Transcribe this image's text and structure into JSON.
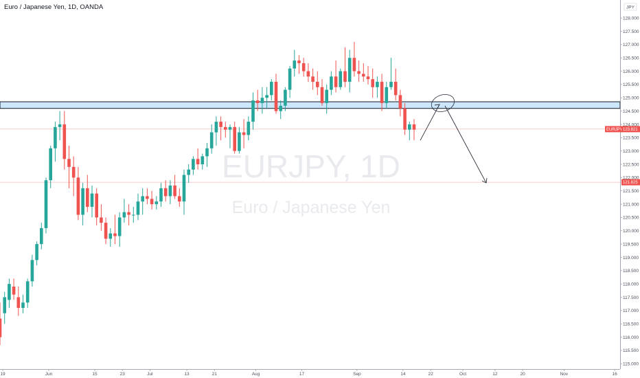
{
  "header": {
    "title": "Euro / Japanese Yen, 1D, OANDA"
  },
  "watermark": {
    "symbol": "EURJPY, 1D",
    "name": "Euro / Japanese Yen"
  },
  "colors": {
    "up": "#26a69a",
    "down": "#ef5350",
    "zone": "#bbdefb",
    "zone_border": "#131722",
    "drawing": "#2a2e39"
  },
  "chart_data": {
    "type": "candlestick",
    "currency": "JPY",
    "ylim": [
      114.8,
      128.6
    ],
    "yticks": [
      "115.000",
      "115.500",
      "116.000",
      "116.500",
      "117.000",
      "117.500",
      "118.000",
      "118.500",
      "119.000",
      "119.500",
      "120.000",
      "120.500",
      "121.000",
      "121.500",
      "122.000",
      "122.500",
      "123.000",
      "123.500",
      "124.000",
      "124.500",
      "125.000",
      "125.500",
      "126.000",
      "126.500",
      "127.000",
      "127.500",
      "128.000"
    ],
    "xtick_labels": [
      {
        "label": "19",
        "candle": 0
      },
      {
        "label": "Jun",
        "candle": 10
      },
      {
        "label": "15",
        "candle": 20
      },
      {
        "label": "23",
        "candle": 26
      },
      {
        "label": "Jul",
        "candle": 32
      },
      {
        "label": "13",
        "candle": 40
      },
      {
        "label": "21",
        "candle": 46
      },
      {
        "label": "Aug",
        "candle": 55
      },
      {
        "label": "17",
        "candle": 65
      },
      {
        "label": "Sep",
        "candle": 77
      },
      {
        "label": "14",
        "candle": 87
      },
      {
        "label": "22",
        "candle": 93
      },
      {
        "label": "Oct",
        "candle": 100
      },
      {
        "label": "12",
        "candle": 107
      },
      {
        "label": "20",
        "candle": 113
      },
      {
        "label": "Nov",
        "candle": 122
      },
      {
        "label": "16",
        "candle": 133
      }
    ],
    "price_tags": [
      {
        "label": "EURJPY",
        "value": 123.821,
        "text": "123.821",
        "color": "#ef5350"
      },
      {
        "value": 121.825,
        "text": "121.825",
        "color": "#ef5350"
      }
    ],
    "zone": {
      "top": 124.85,
      "bottom": 124.6
    },
    "candles": [
      [
        116.7,
        117.3,
        115.7,
        116.0
      ],
      [
        116.9,
        117.7,
        116.5,
        117.5
      ],
      [
        117.4,
        118.2,
        117.1,
        118.0
      ],
      [
        117.9,
        118.2,
        117.4,
        117.6
      ],
      [
        117.5,
        117.9,
        116.8,
        117.1
      ],
      [
        117.1,
        117.6,
        116.9,
        117.3
      ],
      [
        117.3,
        118.2,
        117.1,
        118.1
      ],
      [
        118.1,
        119.1,
        117.9,
        118.9
      ],
      [
        118.9,
        119.6,
        118.7,
        119.5
      ],
      [
        119.5,
        120.3,
        119.3,
        120.1
      ],
      [
        120.1,
        122.0,
        119.9,
        121.9
      ],
      [
        121.9,
        123.2,
        121.6,
        123.1
      ],
      [
        123.1,
        124.1,
        122.6,
        123.9
      ],
      [
        123.9,
        124.5,
        123.4,
        124.0
      ],
      [
        124.0,
        124.5,
        122.3,
        122.7
      ],
      [
        122.7,
        123.2,
        121.6,
        122.4
      ],
      [
        122.4,
        122.8,
        121.3,
        122.0
      ],
      [
        122.0,
        122.4,
        120.4,
        120.6
      ],
      [
        120.6,
        121.8,
        120.2,
        121.6
      ],
      [
        121.6,
        122.1,
        120.7,
        120.9
      ],
      [
        120.9,
        121.7,
        120.5,
        121.4
      ],
      [
        121.4,
        121.6,
        120.2,
        120.5
      ],
      [
        120.5,
        121.0,
        120.0,
        120.3
      ],
      [
        120.3,
        120.5,
        119.5,
        119.7
      ],
      [
        119.7,
        120.1,
        119.4,
        119.9
      ],
      [
        119.9,
        120.6,
        119.5,
        119.8
      ],
      [
        119.8,
        120.7,
        119.4,
        120.5
      ],
      [
        120.5,
        121.2,
        120.3,
        120.7
      ],
      [
        120.7,
        121.0,
        120.2,
        120.6
      ],
      [
        120.6,
        120.9,
        120.3,
        120.6
      ],
      [
        120.6,
        121.4,
        120.4,
        121.1
      ],
      [
        121.1,
        121.6,
        120.6,
        121.3
      ],
      [
        121.3,
        121.6,
        121.0,
        121.2
      ],
      [
        121.2,
        121.5,
        120.8,
        121.0
      ],
      [
        121.0,
        121.3,
        120.8,
        121.1
      ],
      [
        121.1,
        121.8,
        120.9,
        121.6
      ],
      [
        121.6,
        121.9,
        121.1,
        121.3
      ],
      [
        121.3,
        121.9,
        121.0,
        121.7
      ],
      [
        121.7,
        122.1,
        121.2,
        121.3
      ],
      [
        121.3,
        121.6,
        120.9,
        121.1
      ],
      [
        121.1,
        122.3,
        120.6,
        122.1
      ],
      [
        122.1,
        122.5,
        121.8,
        122.3
      ],
      [
        122.3,
        122.8,
        122.1,
        122.7
      ],
      [
        122.7,
        123.1,
        122.3,
        122.5
      ],
      [
        122.5,
        122.9,
        122.3,
        122.8
      ],
      [
        122.8,
        123.3,
        122.4,
        123.1
      ],
      [
        123.1,
        124.0,
        122.9,
        123.7
      ],
      [
        123.7,
        124.3,
        123.2,
        124.1
      ],
      [
        124.1,
        124.3,
        123.4,
        123.9
      ],
      [
        123.9,
        124.1,
        123.5,
        123.8
      ],
      [
        123.8,
        124.0,
        123.1,
        123.9
      ],
      [
        123.9,
        124.1,
        122.9,
        123.0
      ],
      [
        123.0,
        123.9,
        122.9,
        123.7
      ],
      [
        123.7,
        124.2,
        123.1,
        123.6
      ],
      [
        123.6,
        124.3,
        123.4,
        124.1
      ],
      [
        124.1,
        125.2,
        123.8,
        124.9
      ],
      [
        124.9,
        125.3,
        124.5,
        124.8
      ],
      [
        124.8,
        125.4,
        124.4,
        125.0
      ],
      [
        125.0,
        125.4,
        124.6,
        125.1
      ],
      [
        125.1,
        125.7,
        124.9,
        125.6
      ],
      [
        125.6,
        125.9,
        124.4,
        124.5
      ],
      [
        124.5,
        124.9,
        124.2,
        124.7
      ],
      [
        124.7,
        125.4,
        124.5,
        125.3
      ],
      [
        125.3,
        126.2,
        125.0,
        126.1
      ],
      [
        126.1,
        126.8,
        125.8,
        126.4
      ],
      [
        126.4,
        126.6,
        125.9,
        126.3
      ],
      [
        126.3,
        126.5,
        125.8,
        126.0
      ],
      [
        126.0,
        126.3,
        125.6,
        125.8
      ],
      [
        125.8,
        126.1,
        125.3,
        125.6
      ],
      [
        125.6,
        126.0,
        125.1,
        125.4
      ],
      [
        125.4,
        125.7,
        124.7,
        124.8
      ],
      [
        124.8,
        125.5,
        124.4,
        125.3
      ],
      [
        125.3,
        126.0,
        125.1,
        125.8
      ],
      [
        125.8,
        126.4,
        125.2,
        125.4
      ],
      [
        125.4,
        126.1,
        125.3,
        126.0
      ],
      [
        126.0,
        126.9,
        125.4,
        125.6
      ],
      [
        125.6,
        126.8,
        125.2,
        126.5
      ],
      [
        126.5,
        127.1,
        125.8,
        126.0
      ],
      [
        126.0,
        126.4,
        125.6,
        125.9
      ],
      [
        125.9,
        126.3,
        125.6,
        125.8
      ],
      [
        125.8,
        126.2,
        125.5,
        125.7
      ],
      [
        125.7,
        126.1,
        125.0,
        125.4
      ],
      [
        125.4,
        125.8,
        125.0,
        125.6
      ],
      [
        125.6,
        125.9,
        124.5,
        124.8
      ],
      [
        124.8,
        125.6,
        124.6,
        125.4
      ],
      [
        125.4,
        126.5,
        125.3,
        125.6
      ],
      [
        125.6,
        126.1,
        124.9,
        125.1
      ],
      [
        125.1,
        125.3,
        124.3,
        124.6
      ],
      [
        124.6,
        124.8,
        123.6,
        123.8
      ],
      [
        123.8,
        124.1,
        123.4,
        124.0
      ],
      [
        124.0,
        124.2,
        123.4,
        123.8
      ]
    ]
  }
}
